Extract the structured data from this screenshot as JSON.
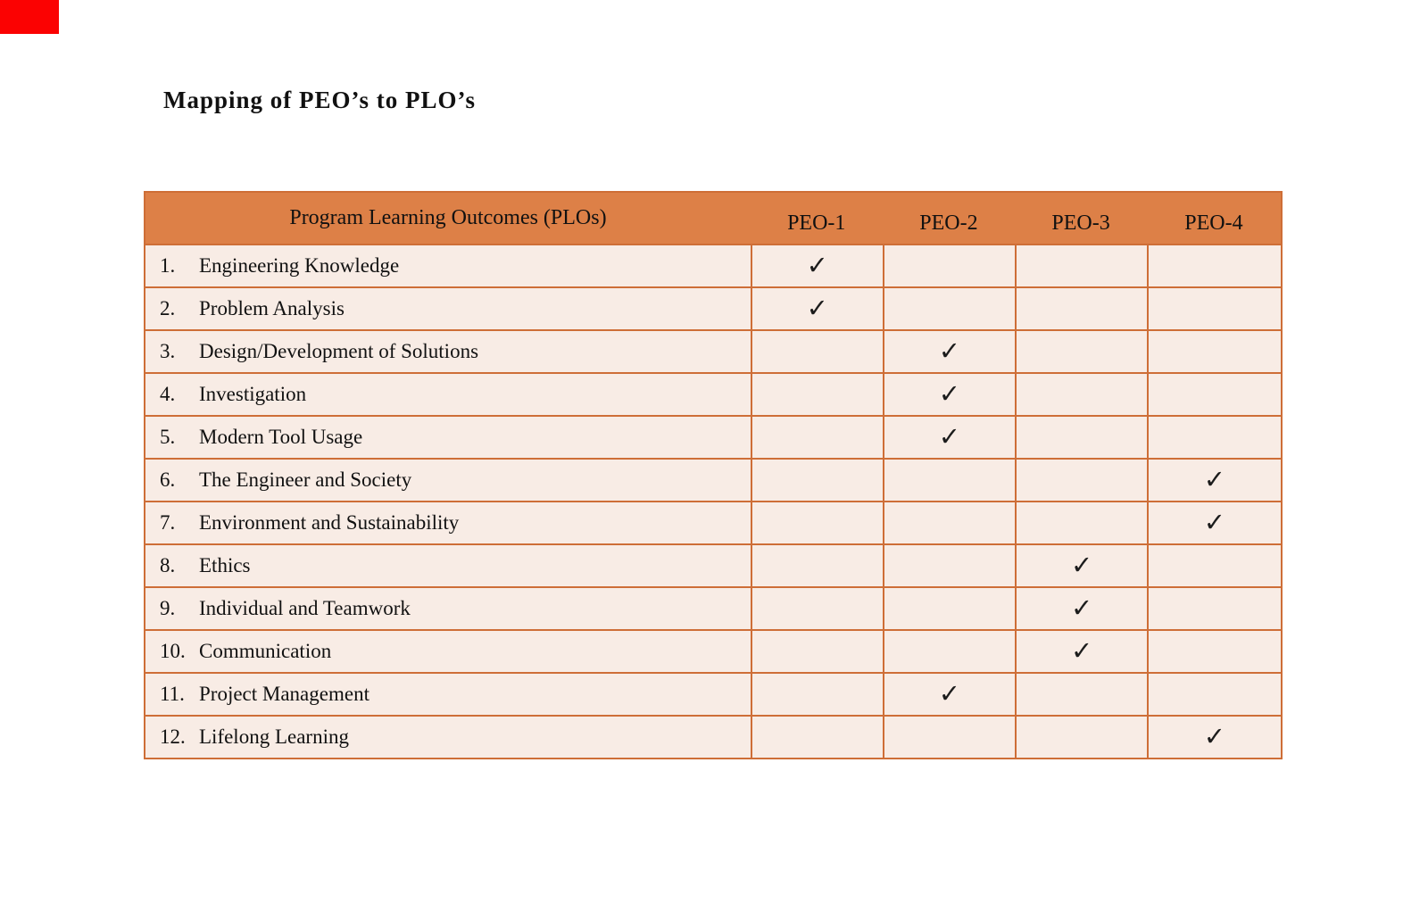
{
  "page": {
    "title": "Mapping of PEO’s to PLO’s"
  },
  "colors": {
    "accent_orange": "#DD8047",
    "row_bg": "#F8ECE5",
    "border_orange": "#CE6E37",
    "marker_red": "#FB0202",
    "text": "#111111"
  },
  "table": {
    "header": {
      "plo_label": "Program Learning Outcomes (PLOs)",
      "peo_labels": [
        "PEO-1",
        "PEO-2",
        "PEO-3",
        "PEO-4"
      ]
    },
    "check_glyph": "✓",
    "rows": [
      {
        "num": "1.",
        "label": "Engineering Knowledge",
        "marks": [
          "✓",
          "",
          "",
          ""
        ]
      },
      {
        "num": "2.",
        "label": "Problem Analysis",
        "marks": [
          "✓",
          "",
          "",
          ""
        ]
      },
      {
        "num": "3.",
        "label": "Design/Development of Solutions",
        "marks": [
          "",
          "✓",
          "",
          ""
        ]
      },
      {
        "num": "4.",
        "label": "Investigation",
        "marks": [
          "",
          "✓",
          "",
          ""
        ]
      },
      {
        "num": "5.",
        "label": "Modern Tool Usage",
        "marks": [
          "",
          "✓",
          "",
          ""
        ]
      },
      {
        "num": "6.",
        "label": "The Engineer and Society",
        "marks": [
          "",
          "",
          "",
          "✓"
        ]
      },
      {
        "num": "7.",
        "label": "Environment and Sustainability",
        "marks": [
          "",
          "",
          "",
          "✓"
        ]
      },
      {
        "num": "8.",
        "label": "Ethics",
        "marks": [
          "",
          "",
          "✓",
          ""
        ]
      },
      {
        "num": "9.",
        "label": "Individual and Teamwork",
        "marks": [
          "",
          "",
          "✓",
          ""
        ]
      },
      {
        "num": "10.",
        "label": "Communication",
        "marks": [
          "",
          "",
          "✓",
          ""
        ]
      },
      {
        "num": "11.",
        "label": "Project Management",
        "marks": [
          "",
          "✓",
          "",
          ""
        ]
      },
      {
        "num": "12.",
        "label": "Lifelong Learning",
        "marks": [
          "",
          "",
          "",
          "✓"
        ]
      }
    ]
  }
}
